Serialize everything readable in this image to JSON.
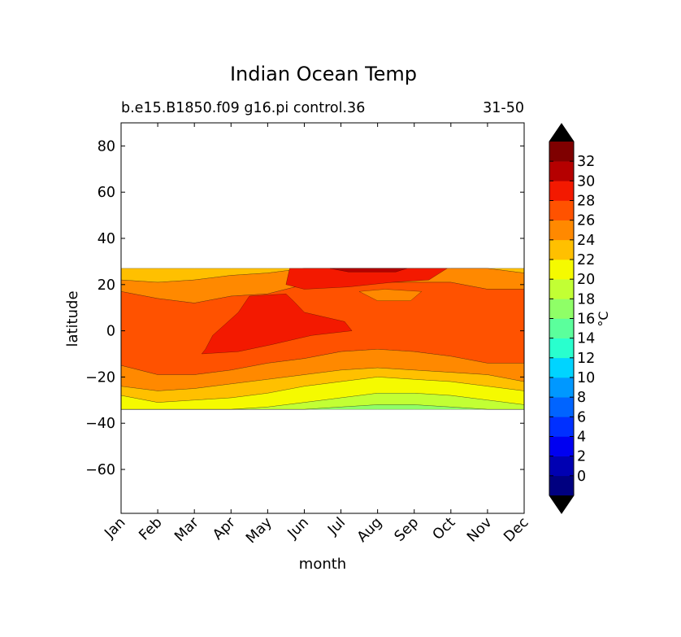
{
  "chart_data": {
    "type": "contourf",
    "title": "Indian Ocean Temp",
    "subtitle_left": "b.e15.B1850.f09 g16.pi control.36",
    "subtitle_right": "31-50",
    "xlabel": "month",
    "ylabel": "latitude",
    "x_ticks": [
      "Jan",
      "Feb",
      "Mar",
      "Apr",
      "May",
      "Jun",
      "Jul",
      "Aug",
      "Sep",
      "Oct",
      "Nov",
      "Dec"
    ],
    "y_ticks": [
      80,
      60,
      40,
      20,
      0,
      -20,
      -40,
      -60
    ],
    "ylim": [
      -79,
      90
    ],
    "data_lat_range": [
      -34,
      27
    ],
    "colorbar": {
      "label": "°C",
      "extend": "both",
      "levels": [
        -2,
        0,
        2,
        4,
        6,
        8,
        10,
        12,
        14,
        16,
        18,
        20,
        22,
        24,
        26,
        28,
        30,
        32,
        34
      ],
      "tick_labels": [
        "0",
        "2",
        "4",
        "6",
        "8",
        "10",
        "12",
        "14",
        "16",
        "18",
        "20",
        "22",
        "24",
        "26",
        "28",
        "30",
        "32"
      ],
      "colors": [
        "#000080",
        "#0000b2",
        "#0000f1",
        "#0030ff",
        "#0064ff",
        "#0098ff",
        "#00d4ff",
        "#29ffce",
        "#5bff9c",
        "#8fff67",
        "#c2ff34",
        "#f5fa00",
        "#ffc000",
        "#ff8900",
        "#ff5200",
        "#f31900",
        "#b50000",
        "#7f0000"
      ],
      "under_color": "#000000",
      "over_color": "#000000"
    },
    "bands": [
      {
        "level": 22,
        "upper": [
          27,
          27,
          27,
          27,
          27,
          27,
          27,
          27,
          27,
          27,
          27,
          27
        ],
        "lower": [
          22,
          21,
          22,
          24,
          25,
          27,
          27,
          27,
          27,
          27,
          27,
          25
        ]
      },
      {
        "level": 24,
        "upper": [
          22,
          21,
          22,
          24,
          25,
          27,
          27,
          27,
          27,
          27,
          27,
          25
        ],
        "lower": [
          17,
          14,
          12,
          15,
          16,
          20,
          20,
          21,
          21,
          21,
          18,
          18
        ]
      },
      {
        "level": 26,
        "upper": [
          17,
          14,
          12,
          15,
          16,
          20,
          20,
          21,
          21,
          21,
          18,
          18
        ],
        "lower": [
          -15,
          -19,
          -19,
          -17,
          -14,
          -12,
          -9,
          -8,
          -9,
          -11,
          -14,
          -14
        ]
      },
      {
        "level": 24,
        "upper": [
          -15,
          -19,
          -19,
          -17,
          -14,
          -12,
          -9,
          -8,
          -9,
          -11,
          -14,
          -14
        ],
        "lower": [
          -24,
          -26,
          -25,
          -23,
          -21,
          -19,
          -17,
          -16,
          -17,
          -18,
          -19,
          -22
        ]
      },
      {
        "level": 22,
        "upper": [
          -24,
          -26,
          -25,
          -23,
          -21,
          -19,
          -17,
          -16,
          -17,
          -18,
          -19,
          -22
        ],
        "lower": [
          -28,
          -31,
          -30,
          -29,
          -27,
          -24,
          -22,
          -20,
          -21,
          -22,
          -24,
          -26
        ]
      },
      {
        "level": 20,
        "upper": [
          -28,
          -31,
          -30,
          -29,
          -27,
          -24,
          -22,
          -20,
          -21,
          -22,
          -24,
          -26
        ],
        "lower": [
          -34,
          -34,
          -34,
          -34,
          -33,
          -31,
          -29,
          -27,
          -27,
          -28,
          -30,
          -32
        ]
      },
      {
        "level": 18,
        "upper": [
          -34,
          -34,
          -34,
          -34,
          -33,
          -31,
          -29,
          -27,
          -27,
          -28,
          -30,
          -32
        ],
        "lower": [
          -34,
          -34,
          -34,
          -34,
          -34,
          -34,
          -33,
          -32,
          -32,
          -33,
          -34,
          -34
        ]
      },
      {
        "level": 16,
        "upper": [
          -34,
          -34,
          -34,
          -34,
          -34,
          -34,
          -33,
          -32,
          -32,
          -33,
          -34,
          -34
        ],
        "lower": [
          -34,
          -34,
          -34,
          -34,
          -34,
          -34,
          -34,
          -34,
          -34,
          -34,
          -34,
          -34
        ]
      }
    ],
    "warm_patches": [
      {
        "level": 28,
        "points": [
          [
            2.3,
            -8
          ],
          [
            2.2,
            -10
          ],
          [
            3.2,
            -9
          ],
          [
            4.1,
            -6
          ],
          [
            5.2,
            -2
          ],
          [
            6.3,
            0
          ],
          [
            6.1,
            4
          ],
          [
            5.0,
            8
          ],
          [
            4.7,
            13
          ],
          [
            4.5,
            16
          ],
          [
            3.5,
            15
          ],
          [
            3.2,
            8
          ],
          [
            2.5,
            -2
          ]
        ]
      },
      {
        "level": 28,
        "points": [
          [
            4.6,
            27
          ],
          [
            8.9,
            27
          ],
          [
            8.4,
            22
          ],
          [
            7.4,
            21
          ],
          [
            6.2,
            19
          ],
          [
            5.0,
            18
          ],
          [
            4.5,
            20
          ]
        ]
      },
      {
        "level": 30,
        "points": [
          [
            5.7,
            27
          ],
          [
            7.8,
            27
          ],
          [
            7.5,
            25.5
          ],
          [
            6.2,
            25.5
          ]
        ]
      },
      {
        "level": 24,
        "points": [
          [
            6.5,
            17
          ],
          [
            7.2,
            18
          ],
          [
            8.2,
            17
          ],
          [
            7.9,
            13
          ],
          [
            7.0,
            13
          ]
        ]
      }
    ]
  }
}
